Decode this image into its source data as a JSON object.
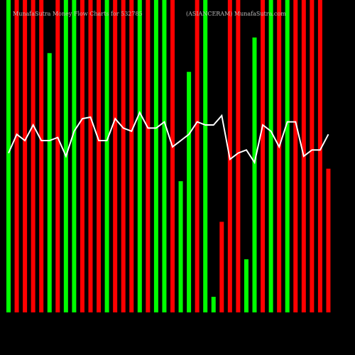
{
  "chart_data": {
    "type": "bar",
    "title": "MunafaSutra Money Flow Charts for 532785",
    "subtitle": "(ASIANCERAM) MunafaSutra.com",
    "ylim": [
      0,
      100
    ],
    "bars": {
      "values": [
        100,
        100,
        100,
        100,
        100,
        83,
        100,
        100,
        100,
        100,
        100,
        100,
        100,
        100,
        100,
        100,
        100,
        100,
        100,
        100,
        100,
        42,
        77,
        100,
        100,
        5,
        29,
        100,
        100,
        17,
        88,
        100,
        100,
        100,
        100,
        100,
        100,
        100,
        100,
        46
      ],
      "colors": [
        "#00ff00",
        "#ff0000",
        "#ff0000",
        "#ff0000",
        "#ff0000",
        "#00ff00",
        "#ff0000",
        "#00ff00",
        "#00ff00",
        "#ff0000",
        "#ff0000",
        "#ff0000",
        "#00ff00",
        "#ff0000",
        "#ff0000",
        "#ff0000",
        "#00ff00",
        "#ff0000",
        "#00ff00",
        "#00ff00",
        "#ff0000",
        "#00ff00",
        "#00ff00",
        "#ff0000",
        "#00ff00",
        "#00ff00",
        "#ff0000",
        "#ff0000",
        "#ff0000",
        "#00ff00",
        "#00ff00",
        "#ff0000",
        "#00ff00",
        "#ff0000",
        "#00ff00",
        "#ff0000",
        "#ff0000",
        "#ff0000",
        "#ff0000",
        "#ff0000"
      ]
    },
    "line": {
      "color": "#ffffff",
      "values": [
        51,
        57,
        55,
        60,
        55,
        55,
        56,
        50,
        58,
        62,
        62.5,
        55,
        55,
        62,
        59,
        58,
        64,
        59,
        59,
        61,
        53,
        55,
        57,
        61,
        60,
        60,
        63,
        49,
        51,
        52,
        48,
        60,
        58,
        53,
        61,
        61,
        50,
        52,
        52,
        57
      ]
    }
  }
}
